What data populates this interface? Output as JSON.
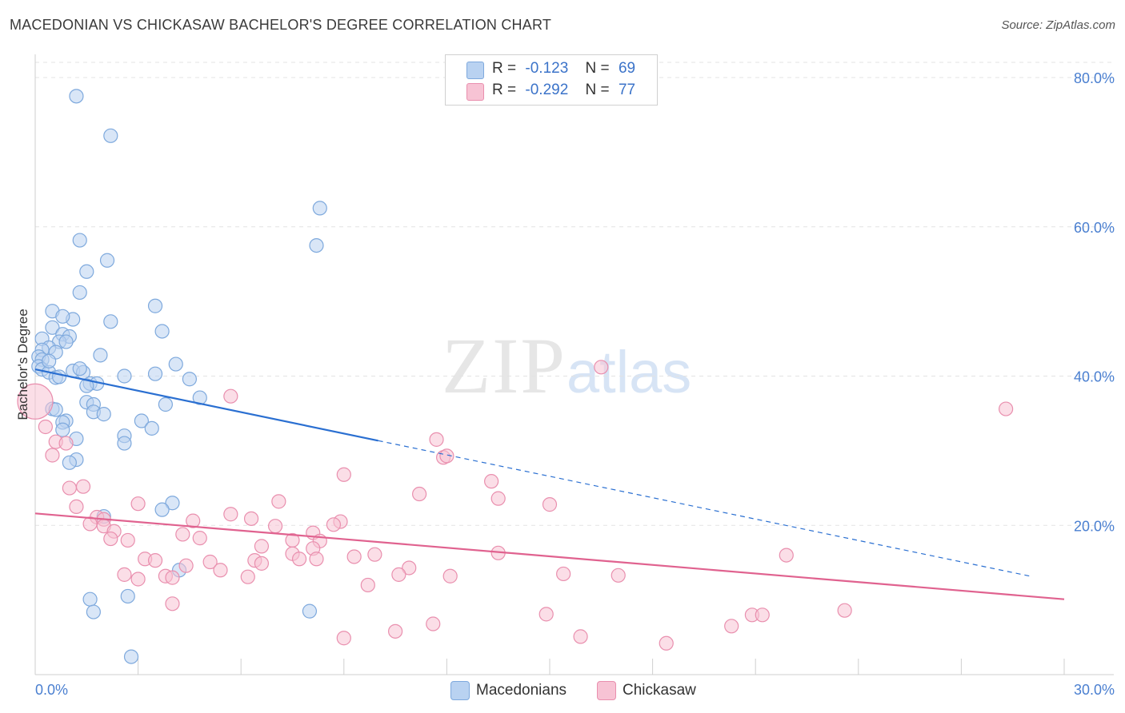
{
  "header": {
    "title": "MACEDONIAN VS CHICKASAW BACHELOR'S DEGREE CORRELATION CHART",
    "source": "Source: ZipAtlas.com"
  },
  "watermark": {
    "zip": "ZIP",
    "atlas": "atlas"
  },
  "legend": {
    "macedonians": {
      "r_label": "R =",
      "r_value": "-0.123",
      "n_label": "N =",
      "n_value": "69"
    },
    "chickasaw": {
      "r_label": "R =",
      "r_value": "-0.292",
      "n_label": "N =",
      "n_value": "77"
    }
  },
  "bottom_legend": {
    "macedonians": "Macedonians",
    "chickasaw": "Chickasaw"
  },
  "colors": {
    "blue_fill": "#b9d2f1",
    "blue_stroke": "#7ea9dd",
    "blue_line": "#2a6fd1",
    "pink_fill": "#f7c3d4",
    "pink_stroke": "#e98fae",
    "pink_line": "#e0628f",
    "grid": "#e3e3e3",
    "axis_label": "#4a7fd0"
  },
  "chart_data": {
    "type": "scatter",
    "title": "MACEDONIAN VS CHICKASAW BACHELOR'S DEGREE CORRELATION CHART",
    "xlabel": "",
    "ylabel": "Bachelor's Degree",
    "xlim": [
      0,
      30
    ],
    "ylim": [
      0,
      80
    ],
    "x_tick_labels": [
      "0.0%",
      "30.0%"
    ],
    "y_ticks": [
      20,
      40,
      60,
      80
    ],
    "y_tick_labels": [
      "20.0%",
      "40.0%",
      "60.0%",
      "80.0%"
    ],
    "grid": true,
    "legend_position": "top-center",
    "series": [
      {
        "name": "Macedonians",
        "r": -0.123,
        "n": 69,
        "trend": {
          "x0": 0,
          "y0": 40.9,
          "x_solid_end": 10.0,
          "x_dashed_end": 29.0,
          "y_at_dashed_end": 13.2
        },
        "points": [
          [
            1.2,
            77.5
          ],
          [
            2.2,
            72.2
          ],
          [
            8.3,
            62.5
          ],
          [
            8.2,
            57.5
          ],
          [
            1.3,
            58.2
          ],
          [
            2.1,
            55.5
          ],
          [
            1.5,
            54.0
          ],
          [
            1.3,
            51.2
          ],
          [
            3.5,
            49.4
          ],
          [
            0.5,
            48.7
          ],
          [
            1.1,
            47.6
          ],
          [
            0.8,
            48.0
          ],
          [
            2.2,
            47.3
          ],
          [
            3.7,
            46.0
          ],
          [
            0.5,
            46.5
          ],
          [
            0.2,
            45.0
          ],
          [
            0.8,
            45.6
          ],
          [
            1.0,
            45.3
          ],
          [
            0.7,
            44.6
          ],
          [
            0.4,
            43.8
          ],
          [
            0.2,
            43.5
          ],
          [
            0.6,
            43.2
          ],
          [
            0.1,
            42.6
          ],
          [
            0.2,
            42.2
          ],
          [
            1.9,
            42.8
          ],
          [
            4.1,
            41.6
          ],
          [
            0.1,
            41.3
          ],
          [
            0.2,
            40.9
          ],
          [
            0.4,
            40.5
          ],
          [
            1.1,
            40.7
          ],
          [
            1.4,
            40.5
          ],
          [
            2.6,
            40.0
          ],
          [
            3.5,
            40.3
          ],
          [
            0.6,
            39.8
          ],
          [
            4.5,
            39.6
          ],
          [
            1.6,
            39.0
          ],
          [
            1.8,
            39.0
          ],
          [
            1.5,
            38.7
          ],
          [
            1.5,
            36.5
          ],
          [
            1.7,
            36.2
          ],
          [
            3.8,
            36.2
          ],
          [
            0.5,
            35.6
          ],
          [
            0.6,
            35.5
          ],
          [
            1.7,
            35.2
          ],
          [
            2.0,
            34.9
          ],
          [
            4.8,
            37.1
          ],
          [
            0.9,
            34.0
          ],
          [
            0.8,
            33.8
          ],
          [
            3.1,
            34.0
          ],
          [
            3.4,
            33.0
          ],
          [
            0.8,
            32.8
          ],
          [
            2.6,
            32.0
          ],
          [
            1.2,
            31.6
          ],
          [
            2.6,
            31.0
          ],
          [
            1.2,
            28.8
          ],
          [
            1.0,
            28.4
          ],
          [
            4.0,
            23.0
          ],
          [
            3.7,
            22.1
          ],
          [
            2.0,
            21.2
          ],
          [
            4.2,
            14.0
          ],
          [
            1.6,
            10.1
          ],
          [
            2.7,
            10.5
          ],
          [
            1.7,
            8.4
          ],
          [
            8.0,
            8.5
          ],
          [
            2.8,
            2.4
          ],
          [
            0.9,
            44.6
          ],
          [
            0.4,
            42.0
          ],
          [
            1.3,
            41.0
          ],
          [
            0.7,
            39.9
          ]
        ]
      },
      {
        "name": "Chickasaw",
        "r": -0.292,
        "n": 77,
        "trend": {
          "x0": 0,
          "y0": 21.6,
          "x1": 30,
          "y1": 10.1
        },
        "points": [
          [
            0.0,
            36.6
          ],
          [
            16.5,
            41.2
          ],
          [
            28.3,
            35.6
          ],
          [
            5.7,
            37.3
          ],
          [
            0.3,
            33.2
          ],
          [
            11.7,
            31.5
          ],
          [
            0.6,
            31.2
          ],
          [
            0.9,
            31.0
          ],
          [
            0.5,
            29.4
          ],
          [
            11.9,
            29.1
          ],
          [
            12.0,
            29.3
          ],
          [
            9.0,
            26.8
          ],
          [
            13.3,
            25.9
          ],
          [
            1.0,
            25.0
          ],
          [
            1.4,
            25.2
          ],
          [
            11.2,
            24.2
          ],
          [
            13.5,
            23.6
          ],
          [
            7.1,
            23.2
          ],
          [
            3.0,
            22.9
          ],
          [
            15.0,
            22.8
          ],
          [
            1.2,
            22.5
          ],
          [
            5.7,
            21.5
          ],
          [
            1.8,
            21.1
          ],
          [
            2.0,
            20.8
          ],
          [
            6.3,
            20.9
          ],
          [
            4.6,
            20.6
          ],
          [
            8.9,
            20.5
          ],
          [
            1.6,
            20.2
          ],
          [
            8.7,
            20.1
          ],
          [
            2.0,
            19.9
          ],
          [
            7.0,
            19.9
          ],
          [
            8.1,
            19.0
          ],
          [
            2.3,
            19.2
          ],
          [
            4.3,
            18.8
          ],
          [
            4.8,
            18.3
          ],
          [
            2.2,
            18.2
          ],
          [
            2.7,
            18.0
          ],
          [
            7.5,
            18.0
          ],
          [
            8.3,
            17.9
          ],
          [
            6.6,
            17.2
          ],
          [
            8.1,
            16.9
          ],
          [
            7.5,
            16.2
          ],
          [
            9.9,
            16.1
          ],
          [
            13.5,
            16.3
          ],
          [
            21.9,
            16.0
          ],
          [
            9.3,
            15.8
          ],
          [
            3.2,
            15.5
          ],
          [
            7.7,
            15.5
          ],
          [
            3.5,
            15.3
          ],
          [
            8.2,
            15.5
          ],
          [
            6.4,
            15.3
          ],
          [
            5.1,
            15.1
          ],
          [
            4.4,
            14.6
          ],
          [
            6.6,
            14.9
          ],
          [
            10.9,
            14.3
          ],
          [
            5.4,
            14.0
          ],
          [
            2.6,
            13.4
          ],
          [
            10.6,
            13.4
          ],
          [
            12.1,
            13.2
          ],
          [
            15.4,
            13.5
          ],
          [
            17.0,
            13.3
          ],
          [
            3.8,
            13.2
          ],
          [
            4.0,
            13.0
          ],
          [
            3.0,
            12.8
          ],
          [
            6.2,
            13.1
          ],
          [
            9.7,
            12.0
          ],
          [
            4.0,
            9.5
          ],
          [
            14.9,
            8.1
          ],
          [
            20.9,
            8.0
          ],
          [
            21.2,
            8.0
          ],
          [
            23.6,
            8.6
          ],
          [
            11.6,
            6.8
          ],
          [
            20.3,
            6.5
          ],
          [
            10.5,
            5.8
          ],
          [
            9.0,
            4.9
          ],
          [
            15.9,
            5.1
          ],
          [
            18.4,
            4.2
          ]
        ]
      }
    ]
  }
}
